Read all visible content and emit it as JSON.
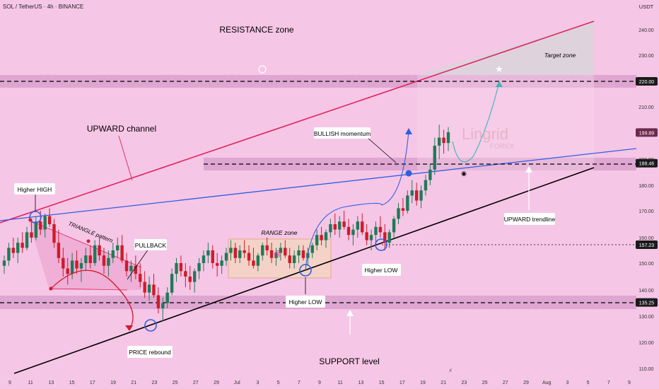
{
  "header": {
    "symbol_line": "SOL / TetherUS · 4h · BINANCE",
    "currency": "USDT"
  },
  "colors": {
    "background": "#f6c6e6",
    "zone_band": "#d9a0cd",
    "candle_up": "#1e7b58",
    "candle_down": "#d11a2a",
    "channel_top": "#e0245e",
    "blue_line": "#2f5fe0",
    "support_line": "#000000",
    "range_box": "#f4d2c8",
    "target_zone": "#d9d4da",
    "price_tag": "#6b2a4c"
  },
  "chart_data": {
    "type": "candlestick",
    "ylim": [
      105,
      250
    ],
    "y_ticks": [
      110,
      120,
      130,
      140,
      150,
      160,
      170,
      180,
      190,
      200,
      210,
      230,
      240
    ],
    "x_tick_labels": [
      "9",
      "11",
      "13",
      "15",
      "17",
      "19",
      "21",
      "23",
      "25",
      "27",
      "29",
      "Jul",
      "3",
      "5",
      "7",
      "9",
      "11",
      "13",
      "15",
      "17",
      "19",
      "21",
      "23",
      "25",
      "27",
      "29",
      "Aug",
      "3",
      "5",
      "7",
      "9"
    ],
    "price_levels": [
      {
        "name": "resistance",
        "value": 220.0,
        "label": "220.00"
      },
      {
        "name": "breakout",
        "value": 188.46,
        "label": "188.46"
      },
      {
        "name": "higher-low",
        "value": 157.23,
        "label": "157.23"
      },
      {
        "name": "support",
        "value": 135.25,
        "label": "135.25"
      }
    ],
    "current_price": {
      "value": 199.89,
      "label": "199.89"
    },
    "candles": [
      [
        149,
        153,
        146,
        151
      ],
      [
        151,
        158,
        149,
        156
      ],
      [
        156,
        160,
        152,
        154
      ],
      [
        154,
        160,
        150,
        158
      ],
      [
        158,
        162,
        154,
        156
      ],
      [
        156,
        164,
        155,
        162
      ],
      [
        162,
        166,
        158,
        160
      ],
      [
        160,
        168,
        159,
        166
      ],
      [
        166,
        170,
        161,
        163
      ],
      [
        163,
        169,
        160,
        168
      ],
      [
        168,
        171,
        164,
        165
      ],
      [
        165,
        167,
        156,
        158
      ],
      [
        158,
        163,
        150,
        152
      ],
      [
        152,
        156,
        145,
        148
      ],
      [
        148,
        152,
        142,
        146
      ],
      [
        146,
        154,
        144,
        151
      ],
      [
        151,
        155,
        146,
        148
      ],
      [
        148,
        152,
        143,
        150
      ],
      [
        150,
        156,
        147,
        153
      ],
      [
        153,
        157,
        148,
        150
      ],
      [
        150,
        159,
        149,
        157
      ],
      [
        157,
        160,
        151,
        153
      ],
      [
        153,
        156,
        146,
        149
      ],
      [
        149,
        155,
        145,
        152
      ],
      [
        152,
        158,
        150,
        155
      ],
      [
        155,
        160,
        152,
        157
      ],
      [
        157,
        161,
        150,
        151
      ],
      [
        151,
        154,
        145,
        147
      ],
      [
        147,
        151,
        143,
        149
      ],
      [
        149,
        153,
        144,
        146
      ],
      [
        146,
        150,
        141,
        143
      ],
      [
        143,
        147,
        137,
        139
      ],
      [
        139,
        145,
        136,
        142
      ],
      [
        142,
        146,
        137,
        138
      ],
      [
        138,
        141,
        131,
        133
      ],
      [
        133,
        137,
        128,
        135
      ],
      [
        135,
        141,
        133,
        139
      ],
      [
        139,
        148,
        138,
        146
      ],
      [
        146,
        152,
        143,
        150
      ],
      [
        150,
        153,
        145,
        147
      ],
      [
        147,
        150,
        141,
        145
      ],
      [
        145,
        149,
        140,
        143
      ],
      [
        143,
        148,
        139,
        147
      ],
      [
        147,
        152,
        144,
        150
      ],
      [
        150,
        155,
        147,
        153
      ],
      [
        153,
        158,
        150,
        155
      ],
      [
        155,
        157,
        148,
        150
      ],
      [
        150,
        154,
        145,
        149
      ],
      [
        149,
        153,
        146,
        151
      ],
      [
        151,
        156,
        149,
        154
      ],
      [
        154,
        159,
        151,
        156
      ],
      [
        156,
        158,
        150,
        152
      ],
      [
        152,
        157,
        150,
        155
      ],
      [
        155,
        159,
        152,
        154
      ],
      [
        154,
        157,
        149,
        151
      ],
      [
        151,
        156,
        148,
        149
      ],
      [
        149,
        154,
        147,
        153
      ],
      [
        153,
        158,
        151,
        157
      ],
      [
        157,
        160,
        153,
        155
      ],
      [
        155,
        158,
        150,
        152
      ],
      [
        152,
        156,
        149,
        154
      ],
      [
        154,
        158,
        151,
        156
      ],
      [
        156,
        159,
        152,
        153
      ],
      [
        153,
        156,
        148,
        150
      ],
      [
        150,
        155,
        148,
        153
      ],
      [
        153,
        157,
        150,
        155
      ],
      [
        155,
        157,
        151,
        152
      ],
      [
        152,
        156,
        149,
        154
      ],
      [
        154,
        158,
        152,
        157
      ],
      [
        157,
        163,
        155,
        161
      ],
      [
        161,
        164,
        157,
        159
      ],
      [
        159,
        163,
        156,
        162
      ],
      [
        162,
        167,
        160,
        165
      ],
      [
        165,
        169,
        161,
        163
      ],
      [
        163,
        168,
        160,
        166
      ],
      [
        166,
        170,
        163,
        164
      ],
      [
        164,
        167,
        159,
        161
      ],
      [
        161,
        165,
        157,
        163
      ],
      [
        163,
        168,
        160,
        166
      ],
      [
        166,
        169,
        161,
        162
      ],
      [
        162,
        165,
        157,
        159
      ],
      [
        159,
        163,
        155,
        161
      ],
      [
        161,
        166,
        158,
        164
      ],
      [
        164,
        168,
        160,
        162
      ],
      [
        162,
        165,
        155,
        158
      ],
      [
        158,
        163,
        156,
        162
      ],
      [
        162,
        168,
        160,
        167
      ],
      [
        167,
        173,
        165,
        171
      ],
      [
        171,
        175,
        168,
        170
      ],
      [
        170,
        178,
        169,
        176
      ],
      [
        176,
        182,
        173,
        178
      ],
      [
        178,
        181,
        172,
        174
      ],
      [
        174,
        180,
        171,
        178
      ],
      [
        178,
        184,
        176,
        182
      ],
      [
        182,
        188,
        180,
        186
      ],
      [
        186,
        198,
        184,
        195
      ],
      [
        195,
        203,
        190,
        198
      ],
      [
        198,
        201,
        192,
        196
      ],
      [
        196,
        202,
        193,
        200
      ]
    ],
    "annotations": [
      "RESISTANCE zone",
      "UPWARD channel",
      "Higher HIGH",
      "TRIANGLE pattern",
      "PULLBACK",
      "RANGE zone",
      "BULLISH momentum",
      "Higher LOW",
      "Higher LOW",
      "PRICE rebound",
      "SUPPORT level",
      "UPWARD trendline",
      "Target zone"
    ]
  },
  "watermark": {
    "name": "Lingrid",
    "sub": "FOREX"
  }
}
